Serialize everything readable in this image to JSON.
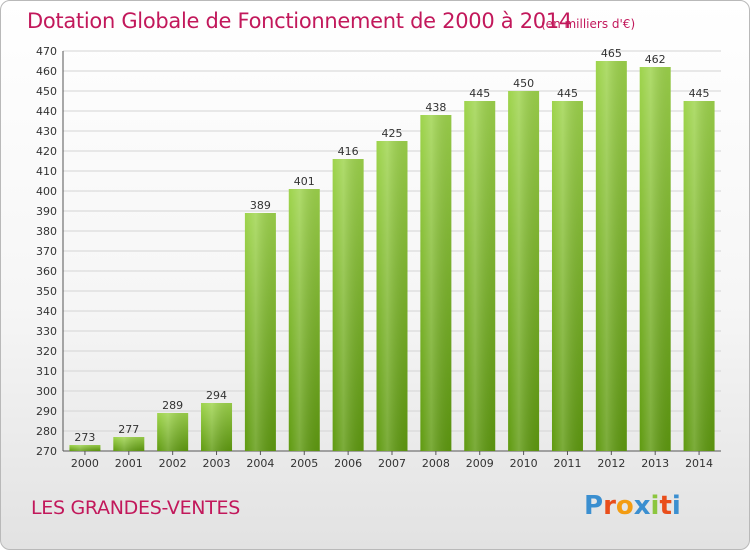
{
  "title": "Dotation Globale de Fonctionnement de 2000 à 2014",
  "unit": "(en milliers d'€)",
  "commune": "LES GRANDES-VENTES",
  "logo": {
    "text": "Proxiti",
    "colors": [
      "#3b8fd0",
      "#e94e1b",
      "#f39c12",
      "#3b8fd0",
      "#8cc63f",
      "#e94e1b",
      "#3b8fd0"
    ]
  },
  "colors": {
    "title": "#c2185b",
    "bar_top": "#9ed44c",
    "bar_bottom": "#5f9a10",
    "grid": "#d4d4d4",
    "axis": "#555555"
  },
  "chart_data": {
    "type": "bar",
    "title": "Dotation Globale de Fonctionnement de 2000 à 2014",
    "subtitle": "(en milliers d'€)",
    "categories": [
      "2000",
      "2001",
      "2002",
      "2003",
      "2004",
      "2005",
      "2006",
      "2007",
      "2008",
      "2009",
      "2010",
      "2011",
      "2012",
      "2013",
      "2014"
    ],
    "values": [
      273,
      277,
      289,
      294,
      389,
      401,
      416,
      425,
      438,
      445,
      450,
      445,
      465,
      462,
      445
    ],
    "ylim": [
      270,
      470
    ],
    "ytick_step": 10,
    "xlabel": "",
    "ylabel": "",
    "grid": true,
    "data_labels": true
  }
}
